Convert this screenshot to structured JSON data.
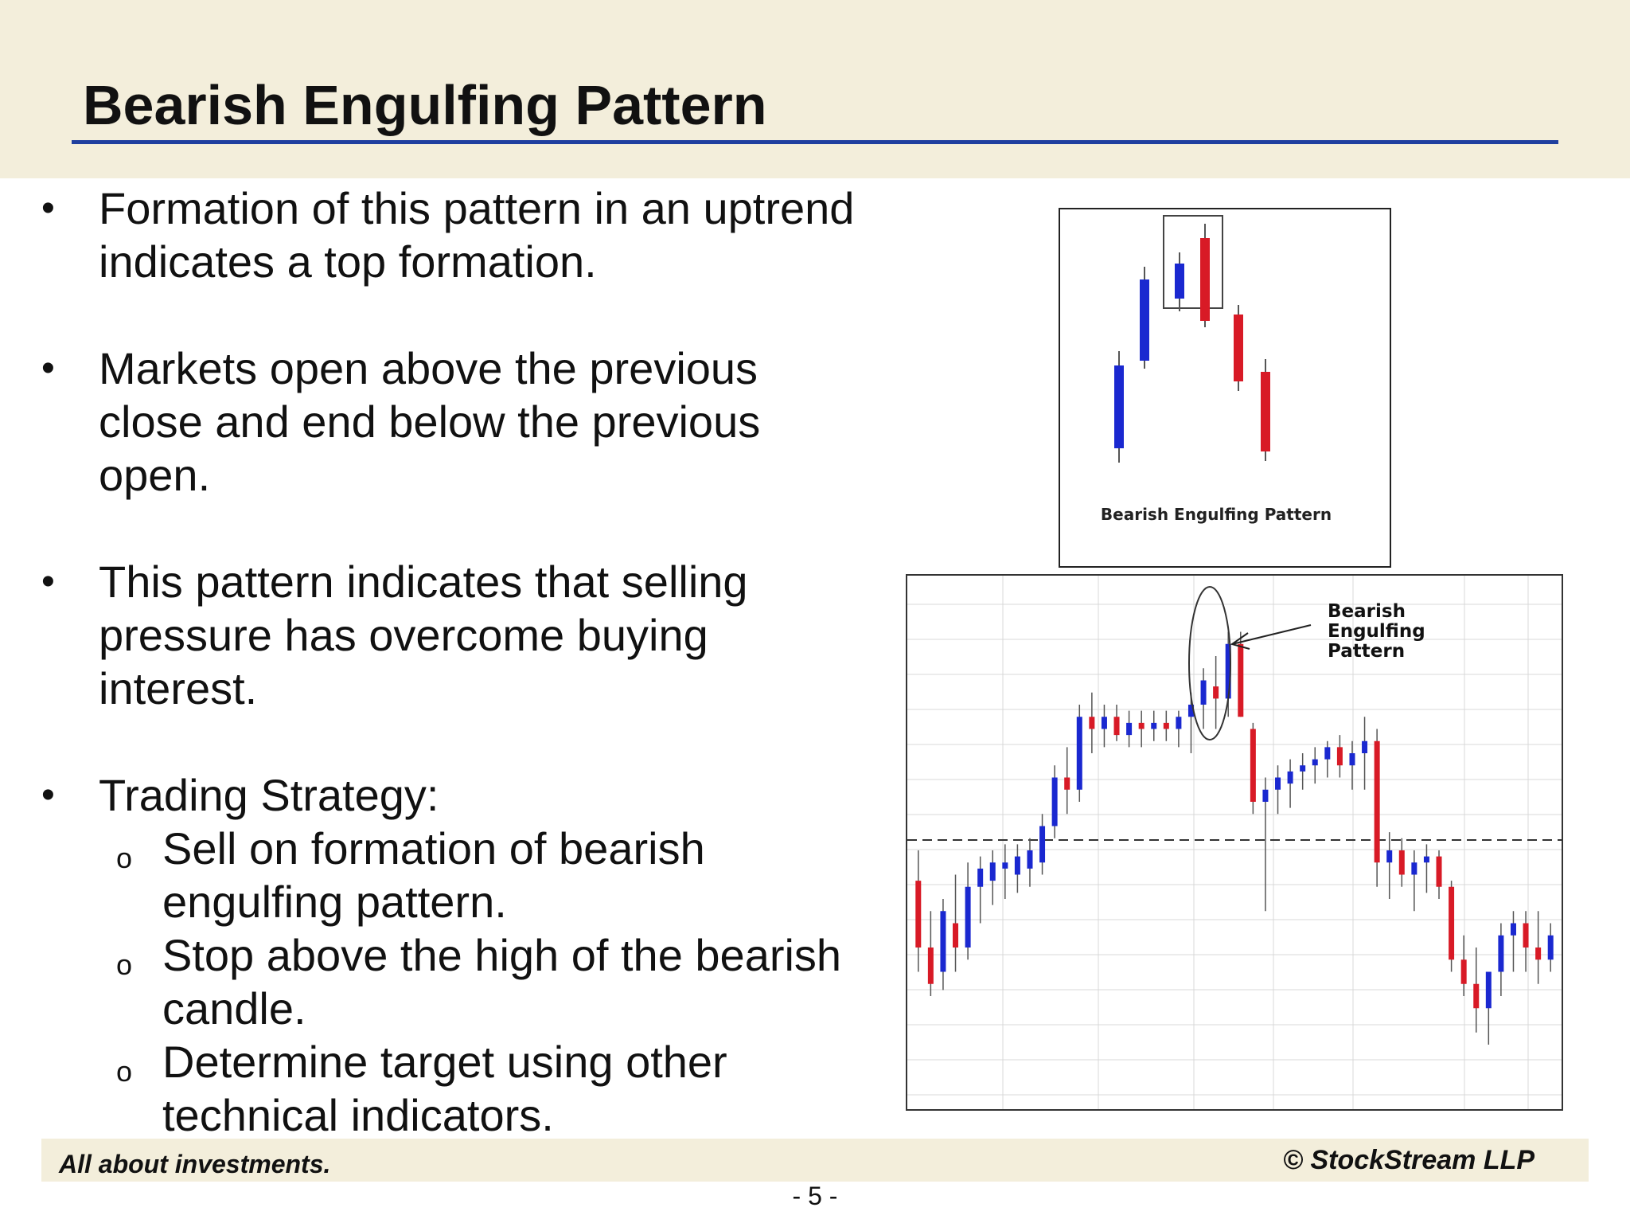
{
  "slide": {
    "title": "Bearish Engulfing Pattern"
  },
  "bullets": [
    {
      "marker": "•",
      "text_lines": [
        "Formation of this pattern in an uptrend",
        "indicates a top formation."
      ]
    },
    {
      "marker": "•",
      "text_lines": [
        "Markets open above the previous",
        "close and end below the previous",
        "open."
      ]
    },
    {
      "marker": "•",
      "text_lines": [
        "This pattern indicates that selling",
        "pressure has overcome buying",
        "interest."
      ]
    },
    {
      "marker": "•",
      "text_lines": [
        "Trading Strategy:"
      ]
    }
  ],
  "sub_bullets": [
    {
      "marker": "o",
      "text_lines": [
        "Sell on formation of bearish",
        "engulfing pattern."
      ]
    },
    {
      "marker": "o",
      "text_lines": [
        "Stop above the high of the bearish",
        "candle."
      ]
    },
    {
      "marker": "o",
      "text_lines": [
        "Determine target using other",
        "technical indicators."
      ]
    }
  ],
  "diagram": {
    "caption": "Bearish Engulfing Pattern"
  },
  "chart_data": {
    "type": "candlestick",
    "annotation": [
      "Bearish",
      "Engulfing",
      "Pattern"
    ],
    "colors": {
      "up": "#1a28d0",
      "down": "#d81a26"
    },
    "grid": true,
    "legend": "none",
    "candles": [
      [
        55,
        60,
        40,
        44
      ],
      [
        44,
        50,
        36,
        38
      ],
      [
        40,
        52,
        37,
        50
      ],
      [
        48,
        56,
        40,
        44
      ],
      [
        44,
        58,
        42,
        54
      ],
      [
        54,
        59,
        48,
        57
      ],
      [
        55,
        60,
        51,
        58
      ],
      [
        57,
        61,
        52,
        58
      ],
      [
        56,
        61,
        53,
        59
      ],
      [
        57,
        62,
        54,
        60
      ],
      [
        58,
        66,
        56,
        64
      ],
      [
        64,
        74,
        62,
        72
      ],
      [
        72,
        77,
        66,
        70
      ],
      [
        70,
        84,
        68,
        82
      ],
      [
        82,
        86,
        76,
        80
      ],
      [
        80,
        84,
        77,
        82
      ],
      [
        82,
        84,
        78,
        79
      ],
      [
        79,
        83,
        77,
        81
      ],
      [
        81,
        83,
        77,
        80
      ],
      [
        80,
        83,
        78,
        81
      ],
      [
        81,
        83,
        78,
        80
      ],
      [
        80,
        83,
        77,
        82
      ],
      [
        82,
        86,
        76,
        84
      ],
      [
        84,
        90,
        80,
        88
      ],
      [
        87,
        92,
        80,
        85
      ],
      [
        85,
        96,
        82,
        94
      ],
      [
        94,
        96,
        82,
        82
      ],
      [
        80,
        81,
        66,
        68
      ],
      [
        68,
        72,
        50,
        70
      ],
      [
        70,
        74,
        66,
        72
      ],
      [
        71,
        75,
        67,
        73
      ],
      [
        73,
        76,
        70,
        74
      ],
      [
        74,
        77,
        71,
        75
      ],
      [
        75,
        78,
        72,
        77
      ],
      [
        77,
        79,
        72,
        74
      ],
      [
        74,
        78,
        70,
        76
      ],
      [
        76,
        82,
        70,
        78
      ],
      [
        78,
        80,
        54,
        58
      ],
      [
        58,
        63,
        52,
        60
      ],
      [
        60,
        62,
        54,
        56
      ],
      [
        56,
        60,
        50,
        58
      ],
      [
        58,
        61,
        53,
        59
      ],
      [
        59,
        60,
        52,
        54
      ],
      [
        54,
        55,
        40,
        42
      ],
      [
        42,
        46,
        36,
        38
      ],
      [
        38,
        44,
        30,
        34
      ],
      [
        34,
        40,
        28,
        40
      ],
      [
        40,
        48,
        36,
        46
      ],
      [
        46,
        50,
        40,
        48
      ],
      [
        48,
        50,
        40,
        44
      ],
      [
        44,
        50,
        38,
        42
      ],
      [
        42,
        48,
        40,
        46
      ]
    ]
  }
}
